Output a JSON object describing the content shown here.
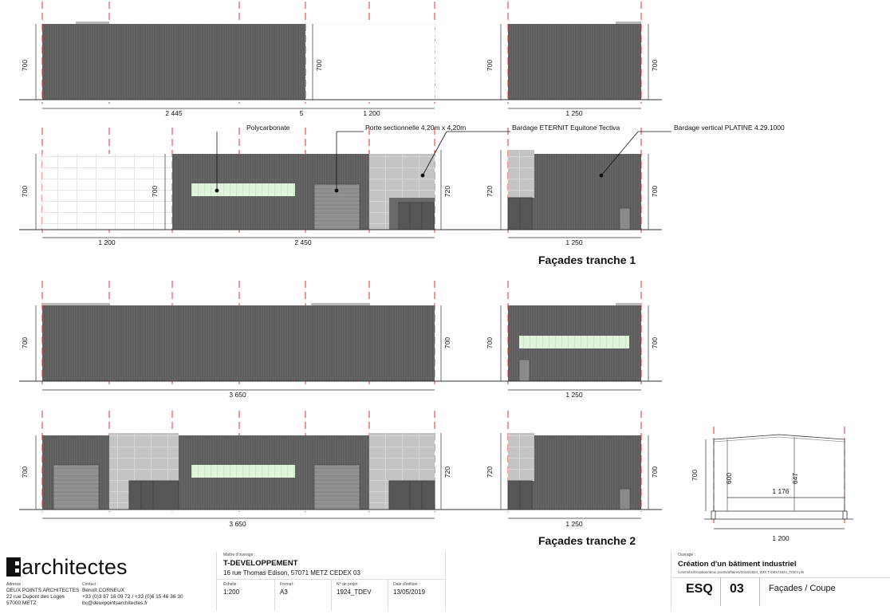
{
  "drawing": {
    "facades_t1": [
      {
        "dims": {
          "height_left": "700",
          "height_right": "700",
          "spans": [
            "2 445",
            "5",
            "1 200"
          ]
        }
      },
      {
        "dims": {
          "height_left": "700",
          "height_right": "700",
          "span": "1 250"
        }
      },
      {
        "dims": {
          "height_left": "700",
          "height_mid": "700",
          "height_right": "720",
          "spans": [
            "1 200",
            "2 450"
          ]
        }
      },
      {
        "dims": {
          "height_left": "720",
          "height_right": "700",
          "span": "1 250"
        }
      }
    ],
    "facades_t2": [
      {
        "dims": {
          "height_left": "700",
          "height_right": "700",
          "span": "3 650"
        }
      },
      {
        "dims": {
          "height_left": "700",
          "height_right": "700",
          "span": "1 250"
        }
      },
      {
        "dims": {
          "height_left": "700",
          "height_right": "720",
          "span": "3 650"
        }
      },
      {
        "dims": {
          "height_left": "720",
          "height_right": "700",
          "span": "1 250"
        }
      }
    ],
    "section": {
      "height": "700",
      "inner_height_a": "600",
      "inner_height_b": "647",
      "inner_span": "1 176",
      "span": "1 200"
    },
    "labels": {
      "polycarbonate": "Polycarbonate",
      "porte": "Porte sectionnelle 4,20m x 4,20m",
      "bardage_eternit": "Bardage ETERNIT Equitone Tectiva",
      "bardage_vertical": "Bardage vertical PLATINE 4.29.1000"
    },
    "titles": {
      "tranche1": "Façades tranche 1",
      "tranche2": "Façades tranche 2"
    },
    "colors": {
      "wall": "#5e5e5e",
      "panel": "#c2c2c2",
      "poly": "#dff2dc",
      "axis": "#e23030",
      "door": "#8a8a8a"
    }
  },
  "cartouche": {
    "logo_text": "architectes",
    "adresse_label": "Adresse :",
    "adresse_lines": [
      "DEUX POINTS ARCHITECTES",
      "22 rue Dupont des Loges",
      "57000 METZ"
    ],
    "contact_label": "Contact :",
    "contact_lines": [
      "Benoît CORNEUX",
      "+33 (0)3 87 16 09 72 / +33 (0)6 15 46 36 30",
      "bc@deuxpointsarchitectes.fr"
    ],
    "maitre_label": "Maître d'ouvrage :",
    "maitre_name": "T-DEVELOPPEMENT",
    "maitre_address": "16 rue Thomas Edison, 57071 METZ CEDEX 03",
    "echelle_label": "Echelle :",
    "echelle": "1:200",
    "format_label": "Format :",
    "format": "A3",
    "projet_label": "N° de projet :",
    "projet": "1924_TDEV",
    "date_label": "Date d'édition :",
    "date": "13/05/2019",
    "ouvrage_label": "Ouvrage :",
    "ouvrage_title": "Création d'un bâtiment industriel",
    "path": "/Users/bc/Dropbox/deux points/affaires/2019/1924_WD/ T-DEV/1924_TDEV.pln",
    "phase": "ESQ",
    "number": "03",
    "sheet_title": "Façades / Coupe"
  }
}
